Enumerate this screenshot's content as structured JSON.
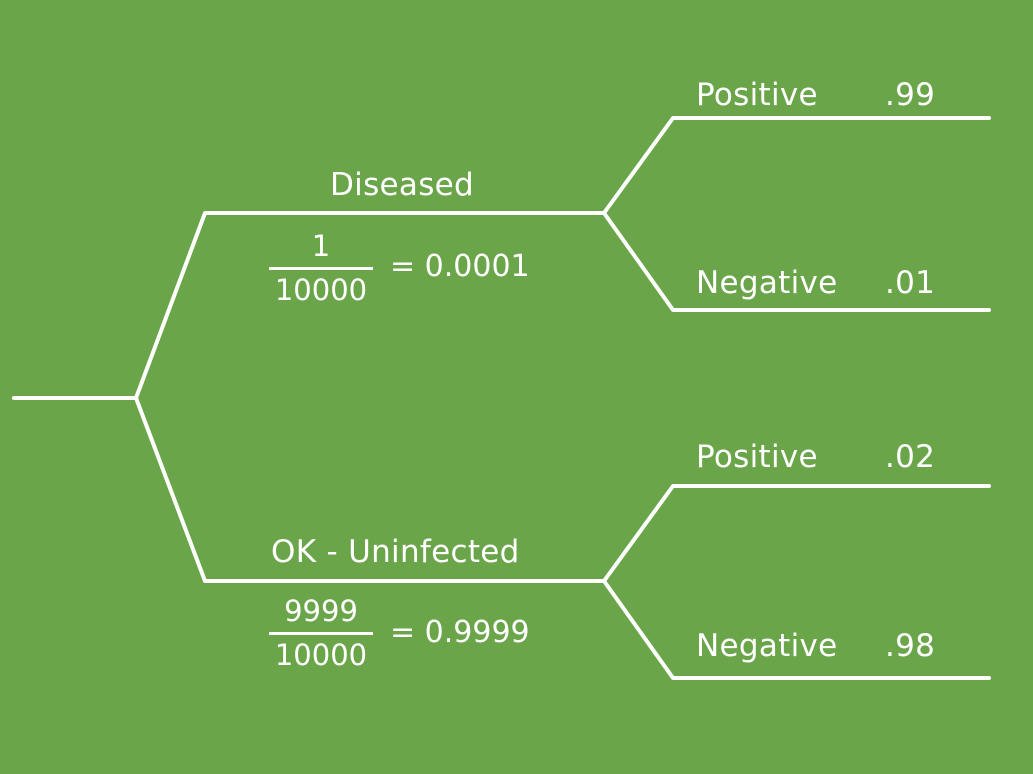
{
  "colors": {
    "background": "#6aa54a",
    "foreground": "#ffffff"
  },
  "branches": {
    "diseased": {
      "label": "Diseased",
      "fraction_numerator": "1",
      "fraction_denominator": "10000",
      "equals_text": "= 0.0001",
      "outcomes": {
        "positive": {
          "label": "Positive",
          "probability": ".99"
        },
        "negative": {
          "label": "Negative",
          "probability": ".01"
        }
      }
    },
    "uninfected": {
      "label": "OK - Uninfected",
      "fraction_numerator": "9999",
      "fraction_denominator": "10000",
      "equals_text": "= 0.9999",
      "outcomes": {
        "positive": {
          "label": "Positive",
          "probability": ".02"
        },
        "negative": {
          "label": "Negative",
          "probability": ".98"
        }
      }
    }
  }
}
